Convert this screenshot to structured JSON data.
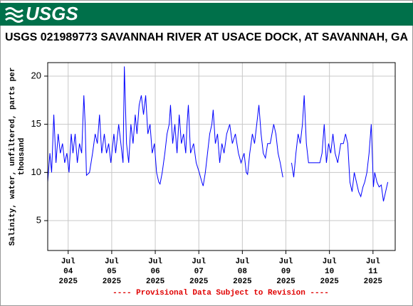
{
  "header": {
    "logo": "USGS"
  },
  "chart_data": {
    "type": "line",
    "title": "USGS 021989773 SAVANNAH RIVER AT USACE DOCK, AT SAVANNAH, GA",
    "ylabel": [
      "Salinity, water, unfiltered, parts per",
      "thousand"
    ],
    "annotation": "---- Provisional Data Subject to Revision ----",
    "xlim": [
      3.53,
      11.51
    ],
    "xticks": [
      {
        "value": 4,
        "label": "Jul 04 2025"
      },
      {
        "value": 5,
        "label": "Jul 05 2025"
      },
      {
        "value": 6,
        "label": "Jul 06 2025"
      },
      {
        "value": 7,
        "label": "Jul 07 2025"
      },
      {
        "value": 8,
        "label": "Jul 08 2025"
      },
      {
        "value": 9,
        "label": "Jul 09 2025"
      },
      {
        "value": 10,
        "label": "Jul 10 2025"
      },
      {
        "value": 11,
        "label": "Jul 11 2025"
      }
    ],
    "ylim": [
      1.9,
      21.4
    ],
    "yticks": [
      5,
      10,
      15,
      20
    ],
    "grid": true,
    "x": [
      3.53,
      3.58,
      3.62,
      3.67,
      3.72,
      3.77,
      3.82,
      3.87,
      3.92,
      3.97,
      4.02,
      4.07,
      4.11,
      4.16,
      4.21,
      4.26,
      4.31,
      4.36,
      4.39,
      4.42,
      4.49,
      4.56,
      4.62,
      4.67,
      4.72,
      4.77,
      4.83,
      4.88,
      4.93,
      4.98,
      5.05,
      5.09,
      5.16,
      5.21,
      5.26,
      5.29,
      5.34,
      5.39,
      5.44,
      5.49,
      5.54,
      5.58,
      5.63,
      5.68,
      5.73,
      5.78,
      5.83,
      5.88,
      5.93,
      5.98,
      6.03,
      6.08,
      6.11,
      6.16,
      6.22,
      6.27,
      6.32,
      6.35,
      6.4,
      6.45,
      6.5,
      6.55,
      6.6,
      6.65,
      6.7,
      6.73,
      6.76,
      6.81,
      6.88,
      6.94,
      7.01,
      7.07,
      7.1,
      7.15,
      7.2,
      7.25,
      7.3,
      7.33,
      7.38,
      7.43,
      7.48,
      7.53,
      7.58,
      7.64,
      7.71,
      7.77,
      7.84,
      7.91,
      7.97,
      8.04,
      8.09,
      8.12,
      8.17,
      8.23,
      8.28,
      8.33,
      8.38,
      8.43,
      8.48,
      8.53,
      8.58,
      8.64,
      8.72,
      8.77,
      8.82,
      8.87,
      8.93,
      9.03,
      9.13,
      9.18,
      9.23,
      9.28,
      9.33,
      9.38,
      9.42,
      9.47,
      9.52,
      9.57,
      9.64,
      9.72,
      9.78,
      9.83,
      9.88,
      9.93,
      9.98,
      10.03,
      10.08,
      10.13,
      10.19,
      10.26,
      10.32,
      10.37,
      10.42,
      10.47,
      10.52,
      10.57,
      10.62,
      10.67,
      10.72,
      10.77,
      10.81,
      10.86,
      10.91,
      10.96,
      11.01,
      11.04,
      11.09,
      11.14,
      11.19,
      11.24,
      11.29,
      11.34
    ],
    "series": [
      {
        "color": "#0000ff",
        "values": [
          9.0,
          12,
          10,
          16,
          11,
          14,
          12,
          13,
          11,
          12,
          10,
          14,
          12,
          14,
          11,
          13,
          12,
          18,
          15,
          9.7,
          10,
          12,
          14,
          13,
          16,
          12,
          14,
          12,
          13,
          11,
          14,
          12,
          15,
          13,
          11,
          21,
          13,
          11,
          15,
          13,
          16,
          14,
          17,
          18,
          16,
          18,
          14,
          15,
          12,
          13,
          10,
          9,
          8.8,
          10,
          12,
          14,
          15,
          17,
          13,
          15,
          12,
          16,
          13,
          14,
          12,
          15,
          17,
          12,
          13,
          11,
          10,
          9,
          8.6,
          10,
          12,
          14,
          15,
          16.5,
          13,
          14,
          11,
          13,
          12,
          14,
          15,
          13,
          14,
          12,
          11,
          12,
          10,
          9.8,
          12,
          14,
          13,
          15,
          17,
          14,
          12,
          11.5,
          13,
          13,
          15,
          14,
          12,
          11,
          9.5,
          null,
          11,
          9.5,
          12,
          14,
          13,
          15,
          18,
          13,
          11,
          11,
          11,
          11,
          11,
          12,
          15,
          11,
          13,
          12,
          14,
          12,
          11,
          13,
          13,
          14,
          13,
          9,
          8,
          10,
          9,
          8,
          7.5,
          8.5,
          9,
          10,
          12,
          15,
          8.5,
          10,
          9,
          8.5,
          8.7,
          7,
          8,
          9
        ]
      }
    ]
  }
}
